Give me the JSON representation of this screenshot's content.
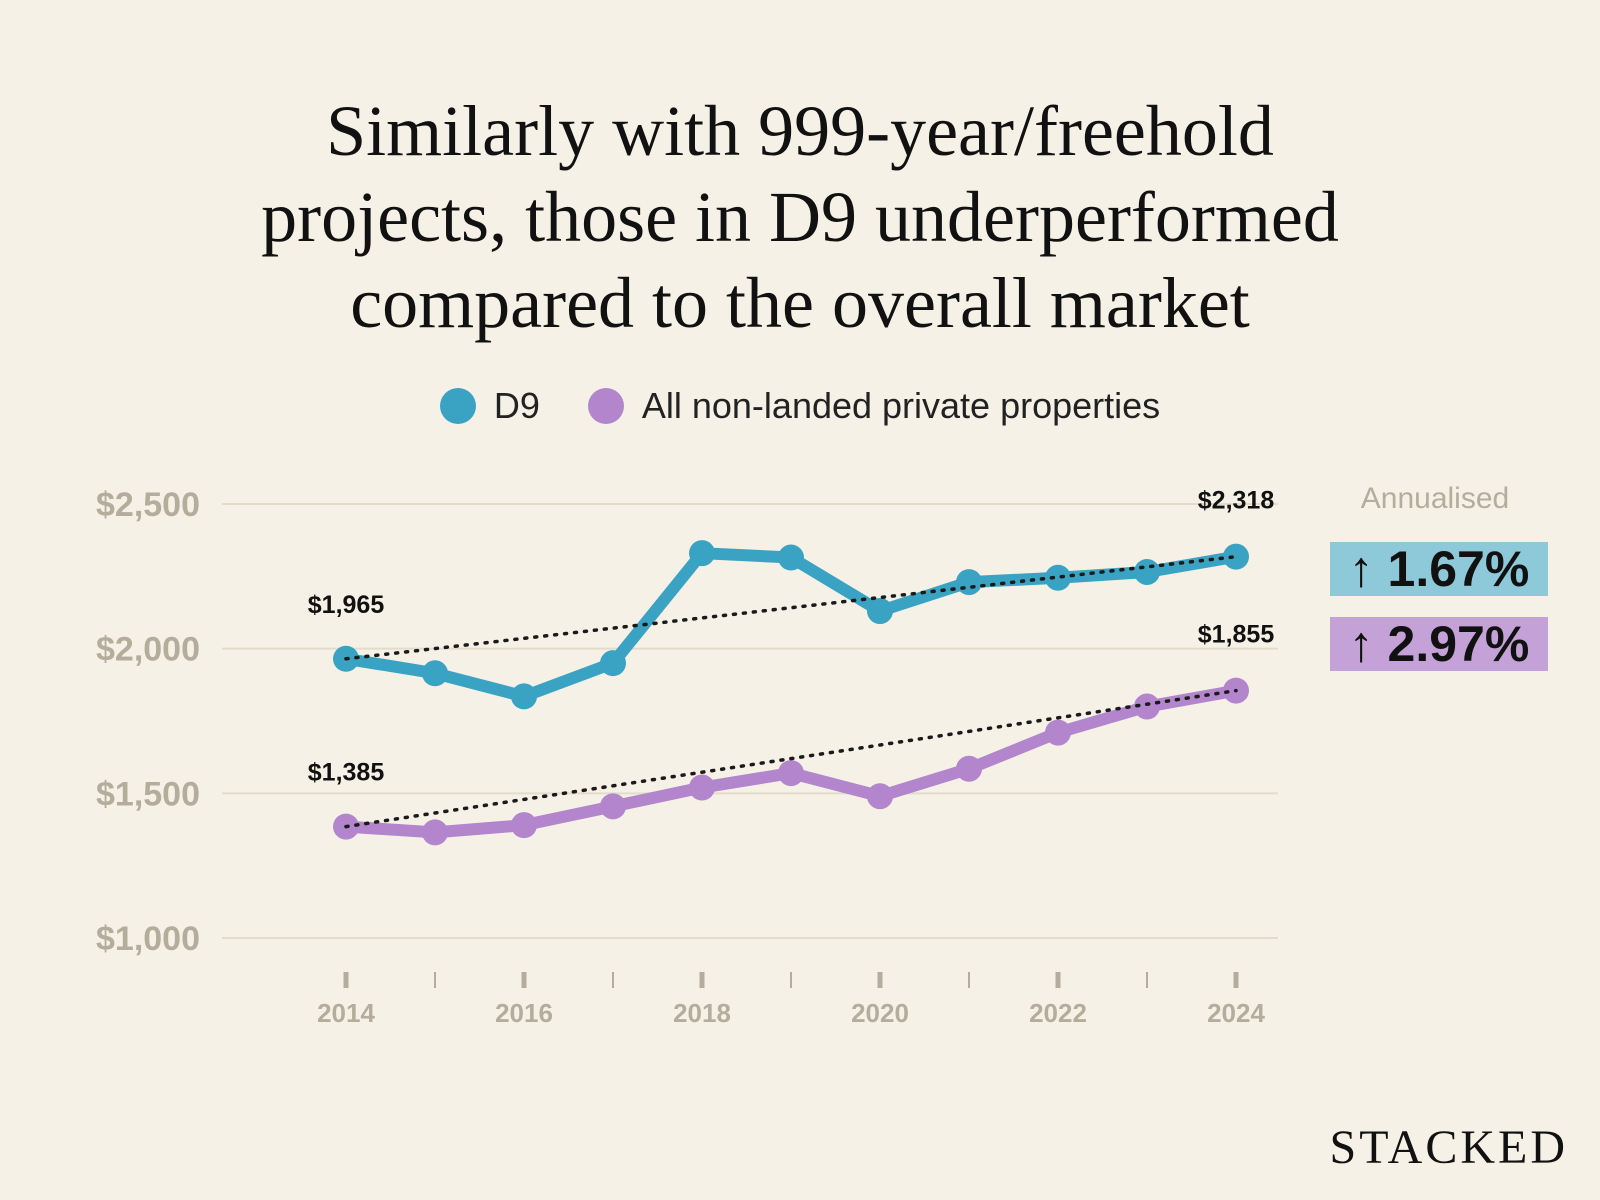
{
  "title_lines": [
    "Similarly with 999-year/freehold",
    "projects, those in D9 underperformed",
    "compared to the overall market"
  ],
  "legend": {
    "d9": "D9",
    "all": "All non-landed private properties"
  },
  "annualised": {
    "label": "Annualised",
    "d9_growth": "↑ 1.67%",
    "all_growth": "↑ 2.97%"
  },
  "brand": "STACKED",
  "colors": {
    "background": "#f5f1e6",
    "d9": "#3aa3c3",
    "all": "#b285cc",
    "grid": "#e2dccd",
    "axis_text": "#b5ad9c"
  },
  "chart_data": {
    "type": "line",
    "title": "Similarly with 999-year/freehold projects, those in D9 underperformed compared to the overall market",
    "x": [
      2014,
      2015,
      2016,
      2017,
      2018,
      2019,
      2020,
      2021,
      2022,
      2023,
      2024
    ],
    "x_tick_labels": [
      "2014",
      "2016",
      "2018",
      "2020",
      "2022",
      "2024"
    ],
    "y_tick_values": [
      1000,
      1500,
      2000,
      2500
    ],
    "y_tick_labels": [
      "$1,000",
      "$1,500",
      "$2,000",
      "$2,500"
    ],
    "ylim": [
      1000,
      2500
    ],
    "grid": true,
    "legend_position": "top-center",
    "series": [
      {
        "name": "D9",
        "key": "d9",
        "values": [
          1965,
          1915,
          1835,
          1950,
          2330,
          2315,
          2130,
          2230,
          2245,
          2265,
          2318
        ],
        "trend": [
          1965,
          2318
        ],
        "first_label": "$1,965",
        "last_label": "$2,318"
      },
      {
        "name": "All non-landed private properties",
        "key": "all",
        "values": [
          1385,
          1365,
          1390,
          1455,
          1520,
          1570,
          1490,
          1585,
          1710,
          1800,
          1855
        ],
        "trend": [
          1385,
          1855
        ],
        "first_label": "$1,385",
        "last_label": "$1,855"
      }
    ]
  }
}
